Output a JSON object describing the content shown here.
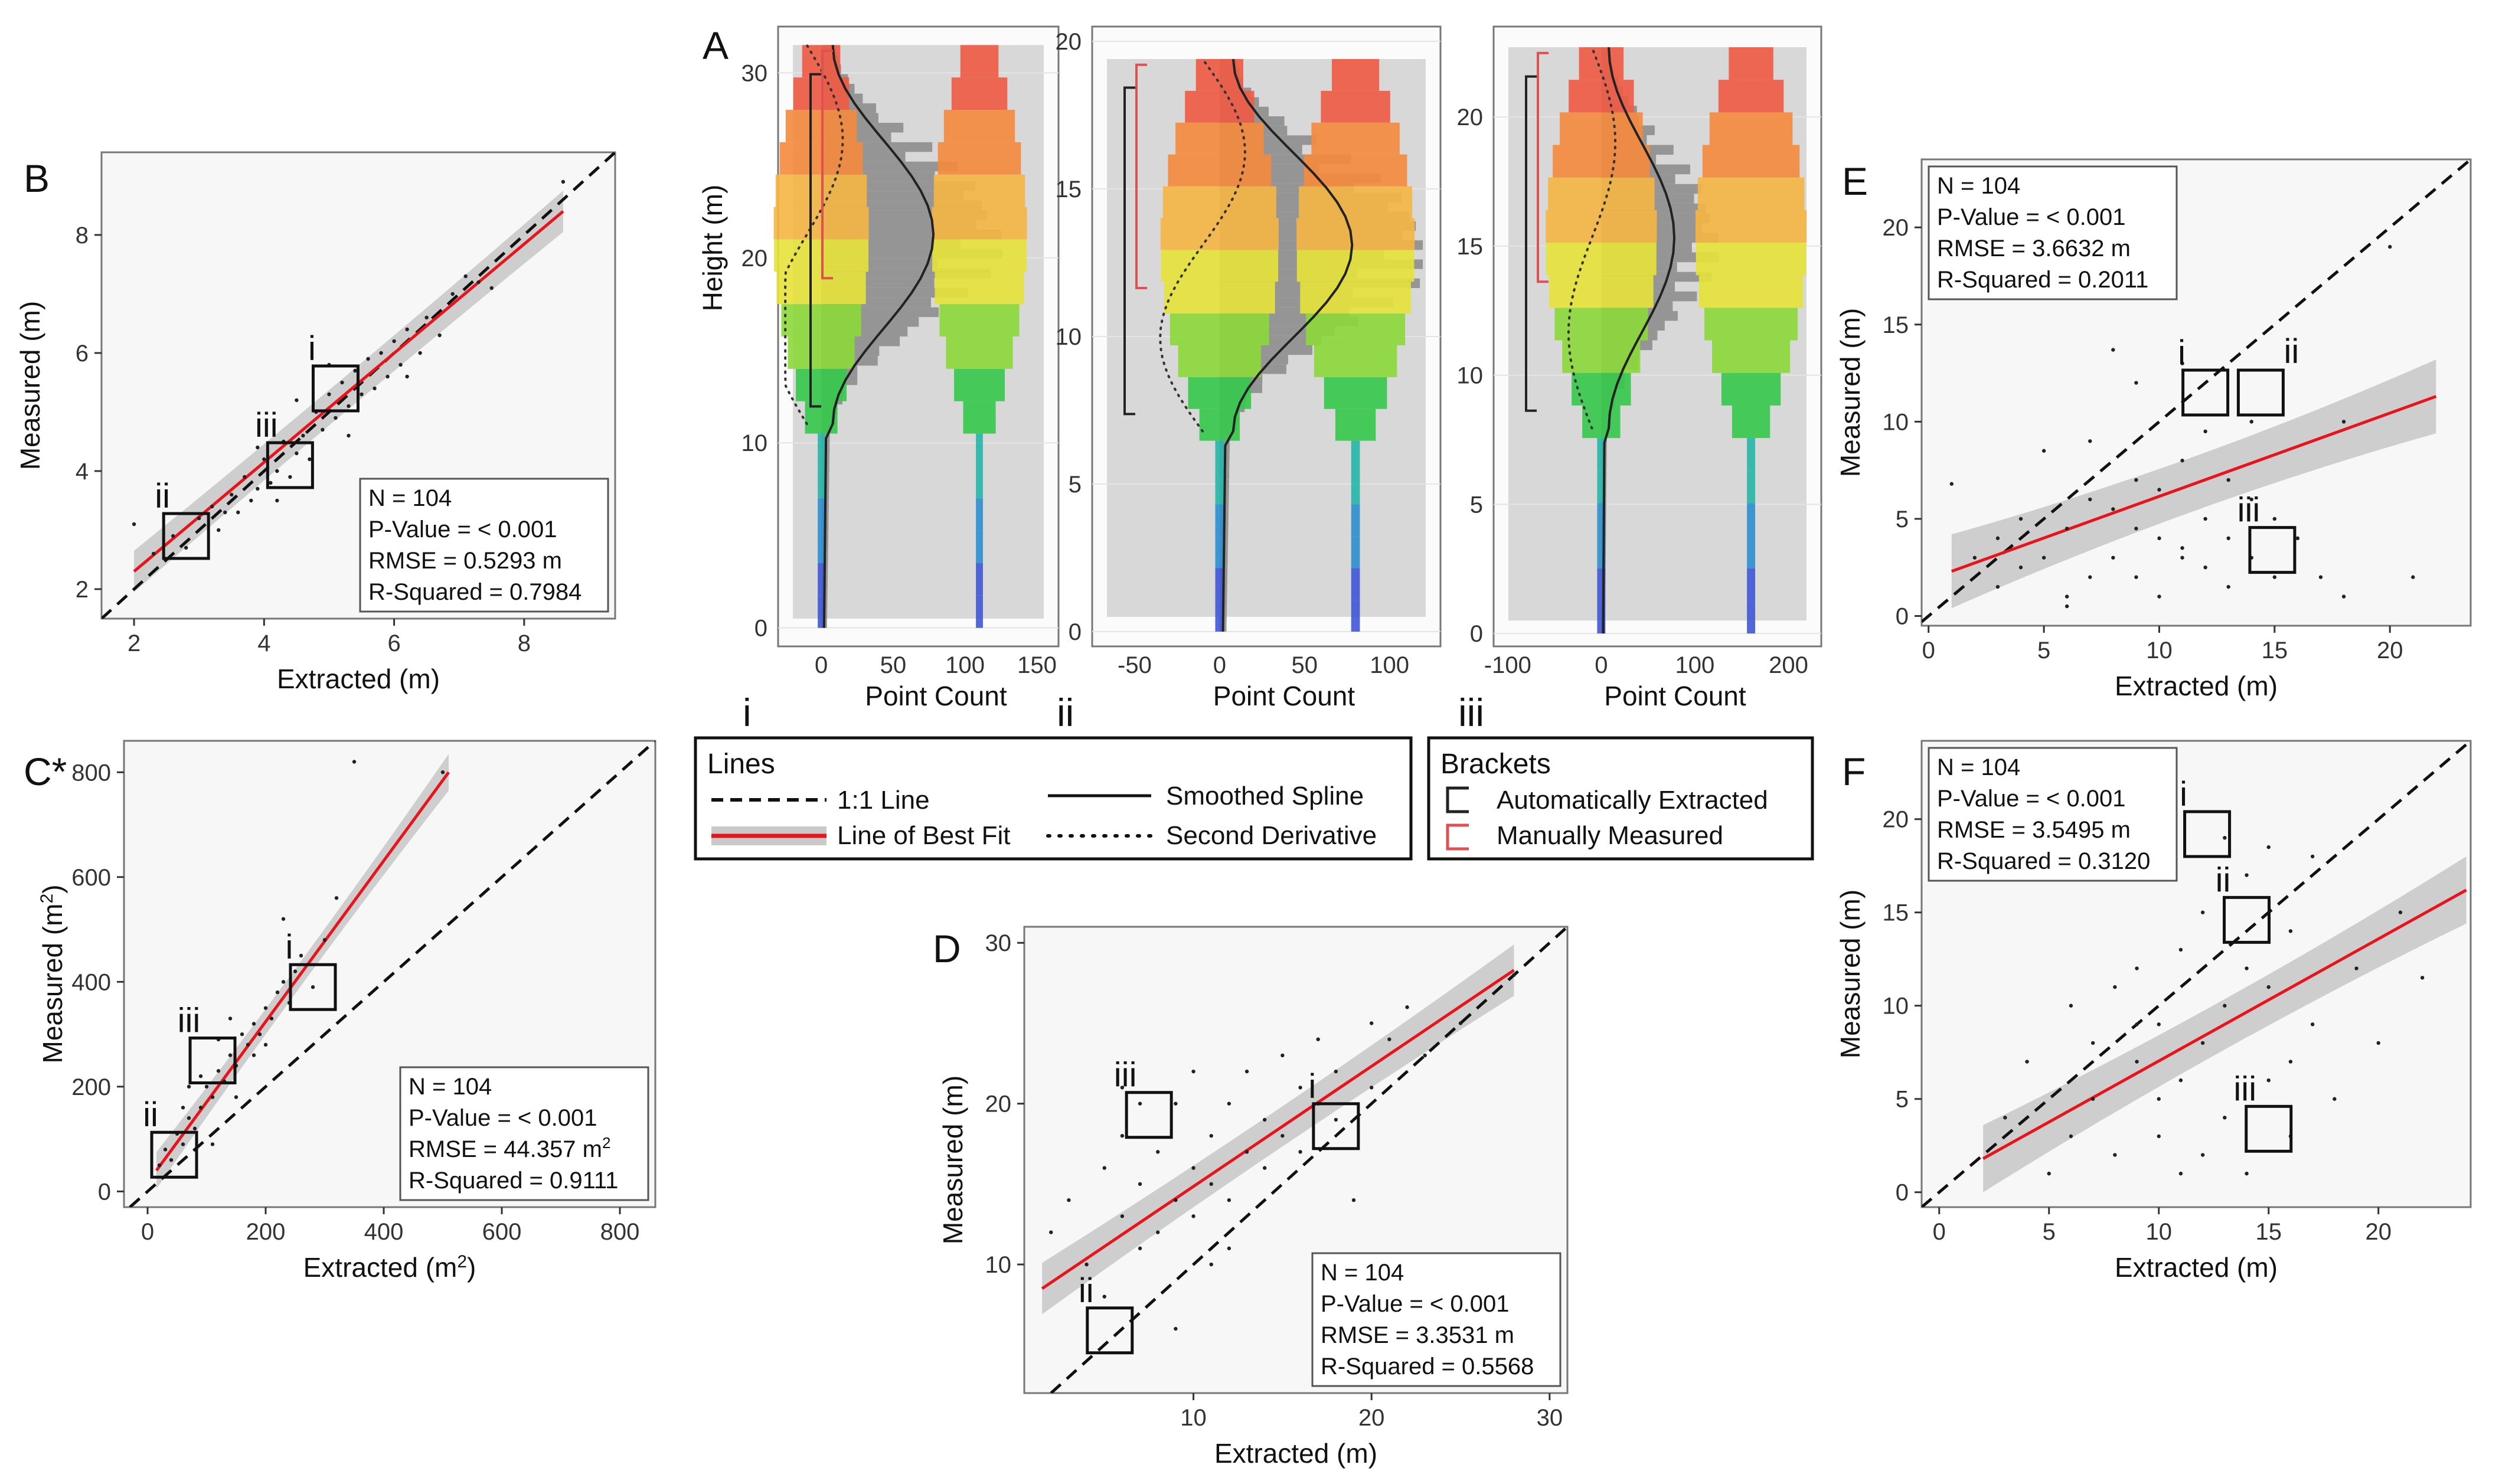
{
  "figure": {
    "description_labels": [
      "A",
      "B",
      "C*",
      "D",
      "E",
      "F"
    ]
  },
  "colors": {
    "panel_bg": "#f7f7f7",
    "confidence_band": "#c9c9c9",
    "fit_line": "#e8141c",
    "identity_line": "#111111",
    "point": "#222222",
    "bracket_auto": "#222222",
    "bracket_manual": "#e05050",
    "histogram": "#8a8a8a"
  },
  "legend": {
    "lines_title": "Lines",
    "one_to_one": "1:1 Line",
    "best_fit": "Line of Best Fit",
    "smoothed_spline": "Smoothed Spline",
    "second_derivative": "Second Derivative",
    "brackets_title": "Brackets",
    "auto_extracted": "Automatically Extracted",
    "manually_measured": "Manually Measured"
  },
  "chart_data": [
    {
      "id": "B",
      "type": "scatter",
      "label": "B",
      "xlabel": "Extracted (m)",
      "ylabel": "Measured (m)",
      "xlim": [
        1.5,
        9.4
      ],
      "ylim": [
        1.5,
        9.4
      ],
      "xticks": [
        2,
        4,
        6,
        8
      ],
      "yticks": [
        2,
        4,
        6,
        8
      ],
      "ylabel_sup": "",
      "xlabel_sup": "",
      "fit": {
        "x": [
          2,
          8.6
        ],
        "y": [
          2.3,
          8.4
        ],
        "band": [
          0.25,
          0.35
        ]
      },
      "stats": {
        "n": "N = 104",
        "p": "P-Value = < 0.001",
        "rmse": "RMSE = 0.5293 m",
        "r2": "R-Squared = 0.7984"
      },
      "stats_pos": "bottom-right",
      "callouts": [
        {
          "label": "i",
          "x": 5.1,
          "y": 5.4
        },
        {
          "label": "iii",
          "x": 4.4,
          "y": 4.1
        },
        {
          "label": "ii",
          "x": 2.8,
          "y": 2.9
        }
      ],
      "points": [
        [
          2,
          3.1
        ],
        [
          2.3,
          2.6
        ],
        [
          2.6,
          2.9
        ],
        [
          2.8,
          2.7
        ],
        [
          3,
          3.2
        ],
        [
          3.2,
          3.4
        ],
        [
          3.3,
          3.0
        ],
        [
          3.5,
          3.6
        ],
        [
          3.6,
          3.3
        ],
        [
          3.7,
          3.9
        ],
        [
          3.8,
          3.5
        ],
        [
          3.9,
          3.7
        ],
        [
          4,
          4.2
        ],
        [
          4.1,
          3.8
        ],
        [
          4.2,
          4.0
        ],
        [
          4.3,
          4.5
        ],
        [
          4.4,
          3.9
        ],
        [
          4.5,
          4.3
        ],
        [
          4.6,
          4.6
        ],
        [
          4.7,
          4.2
        ],
        [
          4.8,
          5.0
        ],
        [
          4.9,
          4.7
        ],
        [
          5,
          5.3
        ],
        [
          5.1,
          4.9
        ],
        [
          5.2,
          5.5
        ],
        [
          5.3,
          5.1
        ],
        [
          5.4,
          5.7
        ],
        [
          5.5,
          5.3
        ],
        [
          5.6,
          5.9
        ],
        [
          5.7,
          5.4
        ],
        [
          5.8,
          6.0
        ],
        [
          5.9,
          5.6
        ],
        [
          6,
          6.2
        ],
        [
          6.1,
          5.8
        ],
        [
          6.2,
          6.4
        ],
        [
          6.4,
          6.0
        ],
        [
          6.5,
          6.6
        ],
        [
          6.7,
          6.3
        ],
        [
          6.9,
          7.0
        ],
        [
          7.1,
          7.3
        ],
        [
          7.3,
          7.2
        ],
        [
          7.5,
          7.1
        ],
        [
          8.6,
          8.9
        ],
        [
          4.5,
          5.2
        ],
        [
          3.4,
          3.3
        ],
        [
          5.0,
          5.8
        ],
        [
          6.2,
          5.6
        ],
        [
          3.9,
          4.4
        ],
        [
          4.2,
          3.5
        ],
        [
          5.3,
          4.6
        ]
      ]
    },
    {
      "id": "C",
      "type": "scatter",
      "label": "C*",
      "xlabel": "Extracted (m",
      "xlabel_sup": "2",
      "ylabel": "Measured (m",
      "ylabel_sup": "2",
      "xlim": [
        -40,
        860
      ],
      "ylim": [
        -30,
        860
      ],
      "xticks": [
        0,
        200,
        400,
        600,
        800
      ],
      "yticks": [
        0,
        200,
        400,
        600,
        800
      ],
      "fit": {
        "x": [
          15,
          510
        ],
        "y": [
          40,
          800
        ],
        "band": [
          12,
          35
        ]
      },
      "stats": {
        "n": "N = 104",
        "p": "P-Value = < 0.001",
        "rmse": "RMSE = 44.357 m",
        "rmse_sup": "2",
        "r2": "R-Squared = 0.9111"
      },
      "stats_pos": "bottom-right",
      "callouts": [
        {
          "label": "i",
          "x": 280,
          "y": 390
        },
        {
          "label": "iii",
          "x": 110,
          "y": 250
        },
        {
          "label": "ii",
          "x": 45,
          "y": 70
        }
      ],
      "points": [
        [
          20,
          50
        ],
        [
          30,
          80
        ],
        [
          40,
          60
        ],
        [
          50,
          110
        ],
        [
          60,
          90
        ],
        [
          70,
          140
        ],
        [
          80,
          120
        ],
        [
          90,
          160
        ],
        [
          100,
          200
        ],
        [
          110,
          180
        ],
        [
          120,
          230
        ],
        [
          130,
          210
        ],
        [
          140,
          260
        ],
        [
          150,
          240
        ],
        [
          160,
          300
        ],
        [
          170,
          280
        ],
        [
          180,
          320
        ],
        [
          190,
          300
        ],
        [
          200,
          350
        ],
        [
          210,
          330
        ],
        [
          220,
          380
        ],
        [
          230,
          400
        ],
        [
          240,
          360
        ],
        [
          250,
          420
        ],
        [
          260,
          450
        ],
        [
          280,
          390
        ],
        [
          300,
          480
        ],
        [
          320,
          560
        ],
        [
          350,
          820
        ],
        [
          500,
          800
        ],
        [
          70,
          200
        ],
        [
          90,
          220
        ],
        [
          120,
          290
        ],
        [
          150,
          180
        ],
        [
          180,
          260
        ],
        [
          110,
          90
        ],
        [
          200,
          280
        ],
        [
          60,
          160
        ],
        [
          140,
          330
        ],
        [
          230,
          520
        ]
      ]
    },
    {
      "id": "D",
      "type": "scatter",
      "label": "D",
      "xlabel": "Extracted (m)",
      "ylabel": "Measured (m)",
      "xlabel_sup": "",
      "ylabel_sup": "",
      "xlim": [
        0.5,
        31
      ],
      "ylim": [
        2,
        31
      ],
      "xticks": [
        10,
        20,
        30
      ],
      "yticks": [
        10,
        20,
        30
      ],
      "fit": {
        "x": [
          1.5,
          28
        ],
        "y": [
          8.5,
          28.3
        ],
        "band": [
          0.9,
          1.6
        ]
      },
      "stats": {
        "n": "N = 104",
        "p": "P-Value = < 0.001",
        "rmse": "RMSE = 3.3531 m",
        "r2": "R-Squared = 0.5568"
      },
      "stats_pos": "bottom-right",
      "callouts": [
        {
          "label": "i",
          "x": 18,
          "y": 18.6
        },
        {
          "label": "iii",
          "x": 7.5,
          "y": 19.3
        },
        {
          "label": "ii",
          "x": 5.3,
          "y": 5.9
        }
      ],
      "points": [
        [
          2,
          12
        ],
        [
          3,
          14
        ],
        [
          4,
          10
        ],
        [
          5,
          16
        ],
        [
          5,
          8
        ],
        [
          6,
          13
        ],
        [
          6,
          18
        ],
        [
          7,
          11
        ],
        [
          7,
          15
        ],
        [
          8,
          17
        ],
        [
          8,
          12
        ],
        [
          9,
          14
        ],
        [
          9,
          20
        ],
        [
          10,
          13
        ],
        [
          10,
          16
        ],
        [
          10,
          22
        ],
        [
          11,
          15
        ],
        [
          11,
          18
        ],
        [
          12,
          14
        ],
        [
          12,
          20
        ],
        [
          13,
          17
        ],
        [
          13,
          22
        ],
        [
          14,
          16
        ],
        [
          14,
          19
        ],
        [
          15,
          18
        ],
        [
          15,
          23
        ],
        [
          16,
          17
        ],
        [
          16,
          21
        ],
        [
          17,
          20
        ],
        [
          17,
          24
        ],
        [
          18,
          19
        ],
        [
          18,
          22
        ],
        [
          19,
          14
        ],
        [
          20,
          21
        ],
        [
          20,
          25
        ],
        [
          21,
          24
        ],
        [
          22,
          26
        ],
        [
          23,
          23
        ],
        [
          25,
          25
        ],
        [
          28,
          28
        ],
        [
          9,
          6
        ],
        [
          12,
          11
        ],
        [
          7,
          20
        ],
        [
          11,
          10
        ],
        [
          6,
          21
        ]
      ]
    },
    {
      "id": "E",
      "type": "scatter",
      "label": "E",
      "xlabel": "Extracted (m)",
      "ylabel": "Measured (m)",
      "xlabel_sup": "",
      "ylabel_sup": "",
      "xlim": [
        -0.3,
        23.5
      ],
      "ylim": [
        -0.5,
        23.5
      ],
      "xticks": [
        0,
        5,
        10,
        15,
        20
      ],
      "yticks": [
        0,
        5,
        10,
        15,
        20
      ],
      "fit": {
        "x": [
          1,
          22
        ],
        "y": [
          2.3,
          11.3
        ],
        "band": [
          0.9,
          1.9
        ]
      },
      "stats": {
        "n": "N = 104",
        "p": "P-Value = < 0.001",
        "rmse": "RMSE = 3.6632 m",
        "r2": "R-Squared = 0.2011"
      },
      "stats_pos": "top-left",
      "callouts": [
        {
          "label": "i",
          "x": 12,
          "y": 11.5
        },
        {
          "label": "ii",
          "x": 14.4,
          "y": 11.5
        },
        {
          "label": "iii",
          "x": 14.9,
          "y": 3.4
        }
      ],
      "points": [
        [
          1,
          6.8
        ],
        [
          2,
          3
        ],
        [
          3,
          4
        ],
        [
          3,
          1.5
        ],
        [
          4,
          2.5
        ],
        [
          4,
          5
        ],
        [
          5,
          3
        ],
        [
          5,
          8.5
        ],
        [
          6,
          1
        ],
        [
          6,
          4.5
        ],
        [
          7,
          2
        ],
        [
          7,
          6
        ],
        [
          7,
          9
        ],
        [
          8,
          3
        ],
        [
          8,
          5.5
        ],
        [
          8,
          13.7
        ],
        [
          9,
          2
        ],
        [
          9,
          7
        ],
        [
          9,
          12
        ],
        [
          10,
          4
        ],
        [
          10,
          6.5
        ],
        [
          10,
          1
        ],
        [
          11,
          3
        ],
        [
          11,
          8
        ],
        [
          11,
          13
        ],
        [
          12,
          2.5
        ],
        [
          12,
          5
        ],
        [
          12,
          9.5
        ],
        [
          13,
          4
        ],
        [
          13,
          7
        ],
        [
          13,
          1.5
        ],
        [
          14,
          3
        ],
        [
          14,
          6
        ],
        [
          14,
          10
        ],
        [
          15,
          2
        ],
        [
          15,
          5
        ],
        [
          16,
          4
        ],
        [
          17,
          2
        ],
        [
          18,
          1
        ],
        [
          18,
          10
        ],
        [
          21,
          2
        ],
        [
          20,
          19
        ],
        [
          6,
          0.5
        ],
        [
          9,
          4.5
        ],
        [
          11,
          3.5
        ]
      ]
    },
    {
      "id": "F",
      "type": "scatter",
      "label": "F",
      "xlabel": "Extracted (m)",
      "ylabel": "Measured (m)",
      "xlabel_sup": "",
      "ylabel_sup": "",
      "xlim": [
        -0.8,
        24.2
      ],
      "ylim": [
        -0.8,
        24.2
      ],
      "xticks": [
        0,
        5,
        10,
        15,
        20
      ],
      "yticks": [
        0,
        5,
        10,
        15,
        20
      ],
      "fit": {
        "x": [
          2,
          24
        ],
        "y": [
          1.8,
          16.2
        ],
        "band": [
          0.9,
          1.8
        ]
      },
      "stats": {
        "n": "N = 104",
        "p": "P-Value = < 0.001",
        "rmse": "RMSE = 3.5495 m",
        "r2": "R-Squared = 0.3120"
      },
      "stats_pos": "top-left",
      "callouts": [
        {
          "label": "i",
          "x": 12.2,
          "y": 19.2
        },
        {
          "label": "ii",
          "x": 14,
          "y": 14.6
        },
        {
          "label": "iii",
          "x": 15,
          "y": 3.4
        }
      ],
      "points": [
        [
          3,
          4
        ],
        [
          4,
          7
        ],
        [
          5,
          1
        ],
        [
          6,
          3
        ],
        [
          6,
          10
        ],
        [
          7,
          5
        ],
        [
          8,
          2
        ],
        [
          8,
          11
        ],
        [
          9,
          7
        ],
        [
          9,
          12
        ],
        [
          10,
          3
        ],
        [
          10,
          9
        ],
        [
          11,
          6
        ],
        [
          11,
          13
        ],
        [
          12,
          2
        ],
        [
          12,
          8
        ],
        [
          12,
          15
        ],
        [
          13,
          4
        ],
        [
          13,
          10
        ],
        [
          14,
          1
        ],
        [
          14,
          12
        ],
        [
          14,
          17
        ],
        [
          15,
          6
        ],
        [
          15,
          11
        ],
        [
          16,
          3
        ],
        [
          16,
          14
        ],
        [
          17,
          9
        ],
        [
          17,
          18
        ],
        [
          18,
          5
        ],
        [
          19,
          12
        ],
        [
          20,
          8
        ],
        [
          21,
          15
        ],
        [
          22,
          11.5
        ],
        [
          13,
          19
        ],
        [
          11,
          1
        ],
        [
          10,
          5
        ],
        [
          9,
          9
        ],
        [
          7,
          8
        ],
        [
          15,
          18.5
        ],
        [
          16,
          7
        ]
      ]
    }
  ],
  "profiles": {
    "ylabel": "Height (m)",
    "xlabel": "Point Count",
    "items": [
      {
        "label": "i",
        "xlim": [
          -30,
          165
        ],
        "ylim": [
          -1,
          32.5
        ],
        "xticks": [
          0,
          50,
          100,
          150
        ],
        "yticks": [
          0,
          10,
          20,
          30
        ],
        "top": 31.5,
        "tree_x": 110
      },
      {
        "label": "ii",
        "xlim": [
          -75,
          130
        ],
        "ylim": [
          -0.5,
          20.5
        ],
        "xticks": [
          -50,
          0,
          50,
          100
        ],
        "yticks": [
          0,
          5,
          10,
          15,
          20
        ],
        "top": 19.4,
        "tree_x": 80
      },
      {
        "label": "iii",
        "xlim": [
          -115,
          235
        ],
        "ylim": [
          -0.5,
          23.5
        ],
        "xticks": [
          -100,
          0,
          100,
          200
        ],
        "yticks": [
          0,
          5,
          10,
          15,
          20
        ],
        "top": 22.7,
        "tree_x": 160
      }
    ]
  }
}
